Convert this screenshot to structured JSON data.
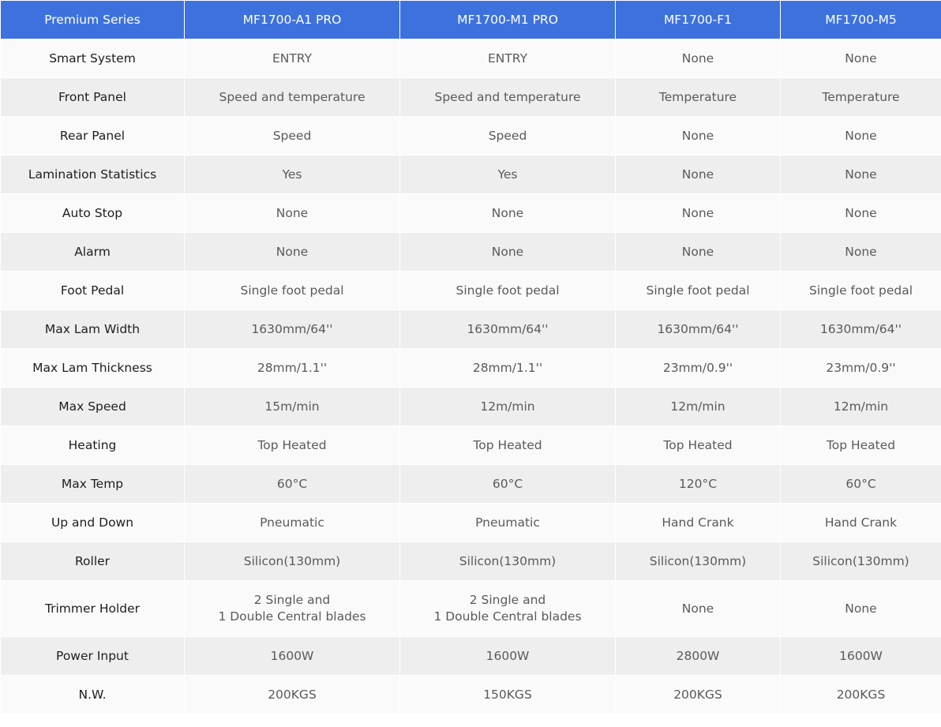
{
  "header": [
    "Premium Series",
    "MF1700-A1 PRO",
    "MF1700-M1 PRO",
    "MF1700-F1",
    "MF1700-M5"
  ],
  "rows": [
    {
      "label": "Smart System",
      "values": [
        "ENTRY",
        "ENTRY",
        "None",
        "None"
      ]
    },
    {
      "label": "Front Panel",
      "values": [
        "Speed and temperature",
        "Speed and temperature",
        "Temperature",
        "Temperature"
      ]
    },
    {
      "label": "Rear Panel",
      "values": [
        "Speed",
        "Speed",
        "None",
        "None"
      ]
    },
    {
      "label": "Lamination Statistics",
      "values": [
        "Yes",
        "Yes",
        "None",
        "None"
      ]
    },
    {
      "label": "Auto Stop",
      "values": [
        "None",
        "None",
        "None",
        "None"
      ]
    },
    {
      "label": "Alarm",
      "values": [
        "None",
        "None",
        "None",
        "None"
      ]
    },
    {
      "label": "Foot Pedal",
      "values": [
        "Single foot pedal",
        "Single foot pedal",
        "Single foot pedal",
        "Single foot pedal"
      ]
    },
    {
      "label": "Max Lam Width",
      "values": [
        "1630mm/64''",
        "1630mm/64''",
        "1630mm/64''",
        "1630mm/64''"
      ]
    },
    {
      "label": "Max Lam Thickness",
      "values": [
        "28mm/1.1''",
        "28mm/1.1''",
        "23mm/0.9''",
        "23mm/0.9''"
      ]
    },
    {
      "label": "Max Speed",
      "values": [
        "15m/min",
        "12m/min",
        "12m/min",
        "12m/min"
      ]
    },
    {
      "label": "Heating",
      "values": [
        "Top Heated",
        "Top Heated",
        "Top Heated",
        "Top Heated"
      ]
    },
    {
      "label": "Max Temp",
      "values": [
        "60°C",
        "60°C",
        "120°C",
        "60°C"
      ]
    },
    {
      "label": "Up and Down",
      "values": [
        "Pneumatic",
        "Pneumatic",
        "Hand Crank",
        "Hand Crank"
      ]
    },
    {
      "label": "Roller",
      "values": [
        "Silicon(130mm)",
        "Silicon(130mm)",
        "Silicon(130mm)",
        "Silicon(130mm)"
      ]
    },
    {
      "label": "Trimmer Holder",
      "values": [
        "2 Single and\n1 Double Central blades",
        "2 Single and\n1 Double Central blades",
        "None",
        "None"
      ]
    },
    {
      "label": "Power Input",
      "values": [
        "1600W",
        "1600W",
        "2800W",
        "1600W"
      ]
    },
    {
      "label": "N.W.",
      "values": [
        "200KGS",
        "150KGS",
        "200KGS",
        "200KGS"
      ]
    }
  ],
  "colors": {
    "header_bg": "#3d72de",
    "row_light": "#fafafa",
    "row_dark": "#eeeeee"
  }
}
